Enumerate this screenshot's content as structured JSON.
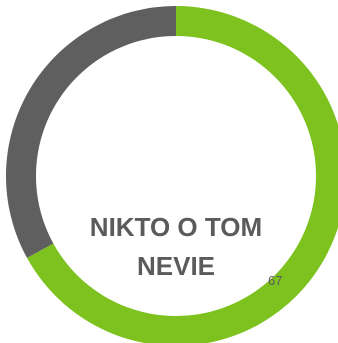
{
  "chart_data": {
    "type": "pie",
    "variant": "donut",
    "slices": [
      {
        "value": 67,
        "color": "#7dc21e"
      },
      {
        "value": 33,
        "color": "#5c5c5c"
      }
    ],
    "center_label": [
      "NIKTO O TOM",
      "NEVIE"
    ],
    "data_label": "67"
  }
}
